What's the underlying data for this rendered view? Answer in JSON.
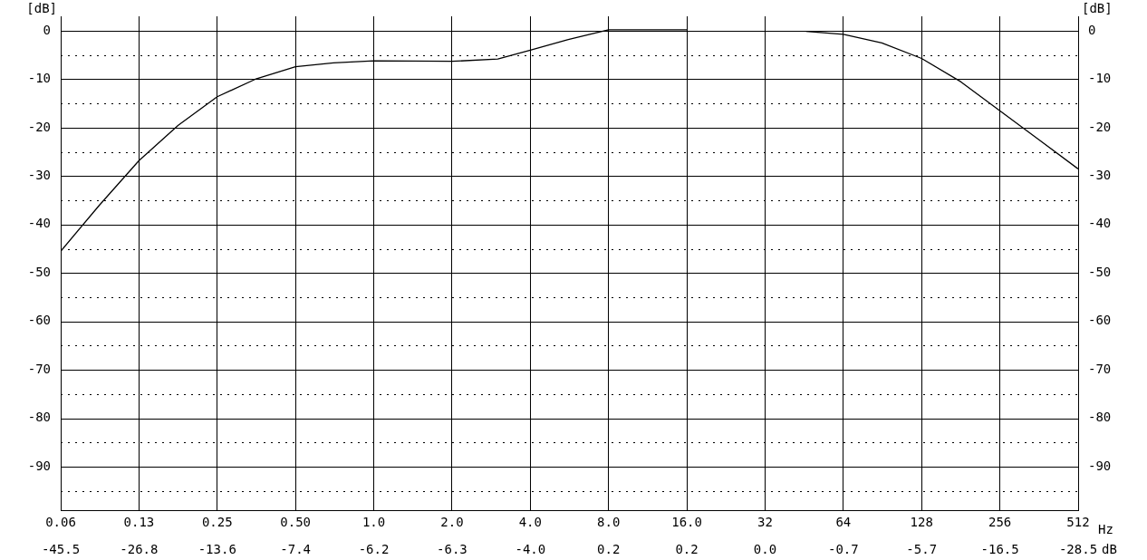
{
  "chart_data": {
    "type": "line",
    "xlabel": "Hz",
    "ylabel": "[dB]",
    "y2label": "[dB]",
    "log": "x",
    "xlim": [
      0.0625,
      512
    ],
    "xticks": [
      {
        "value": 0.0625,
        "label": "0.06"
      },
      {
        "value": 0.125,
        "label": "0.13"
      },
      {
        "value": 0.25,
        "label": "0.25"
      },
      {
        "value": 0.5,
        "label": "0.50"
      },
      {
        "value": 1,
        "label": "1.0"
      },
      {
        "value": 2,
        "label": "2.0"
      },
      {
        "value": 4,
        "label": "4.0"
      },
      {
        "value": 8,
        "label": "8.0"
      },
      {
        "value": 16,
        "label": "16.0"
      },
      32,
      64,
      128,
      256,
      512
    ],
    "ylim": [
      -99,
      3
    ],
    "yticks": [
      {
        "value": -95,
        "label": null
      },
      -90,
      {
        "value": -85,
        "label": null
      },
      -80,
      {
        "value": -75,
        "label": null
      },
      -70,
      {
        "value": -65,
        "label": null
      },
      -60,
      {
        "value": -55,
        "label": null
      },
      -50,
      {
        "value": -45,
        "label": null
      },
      -40,
      {
        "value": -35,
        "label": null
      },
      -30,
      {
        "value": -25,
        "label": null
      },
      -20,
      {
        "value": -15,
        "label": null
      },
      -10,
      {
        "value": -5,
        "label": null
      },
      0
    ],
    "y2lim": [
      -99,
      3
    ],
    "y2ticks": [
      -90,
      -80,
      -70,
      -60,
      -50,
      -40,
      -30,
      -20,
      -10,
      0
    ],
    "grid": true,
    "marker": "none",
    "line_style": "solid",
    "x": [
      0.0625,
      0.088,
      0.125,
      0.177,
      0.25,
      0.35,
      0.5,
      0.7,
      1,
      2,
      3,
      4,
      5.6,
      8,
      11,
      16,
      23,
      46,
      64,
      90,
      128,
      181,
      256,
      362,
      512
    ],
    "series": [
      {
        "color": "#000000",
        "values": [
          -45.5,
          -36,
          -26.8,
          -19.5,
          -13.6,
          -10,
          -7.4,
          -6.6,
          -6.2,
          -6.3,
          -5.8,
          -4.0,
          -1.8,
          0.2,
          0.2,
          0.2,
          null,
          -0.1,
          -0.7,
          -2.5,
          -5.7,
          -10.5,
          -16.5,
          -22.5,
          -28.5
        ]
      }
    ],
    "annotations": [
      "-45.5",
      "-26.8",
      "-13.6",
      "-7.4",
      "-6.2",
      "-6.3",
      "-4.0",
      "0.2",
      "0.2",
      "0.0",
      "-0.7",
      "-5.7",
      "-16.5",
      "-28.5",
      "dB"
    ]
  }
}
